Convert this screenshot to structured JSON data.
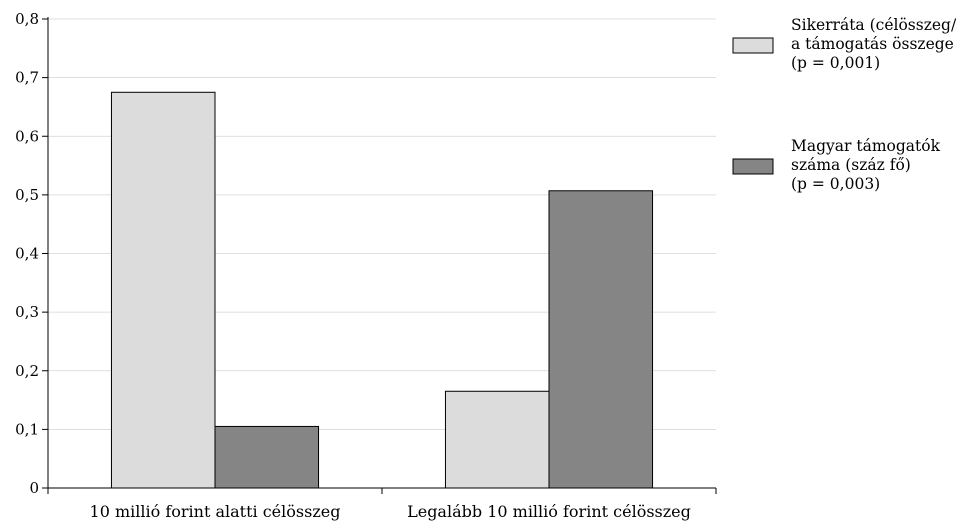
{
  "chart_data": {
    "type": "bar",
    "categories": [
      "10 millió forint alatti célösszeg",
      "Legalább 10 millió forint célösszeg"
    ],
    "series": [
      {
        "name": "Sikerráta (célösszeg/ a támogatás összege) (p = 0,001)",
        "legend_lines": [
          "Sikerráta (célösszeg/",
          "a támogatás összege",
          "(p = 0,001)"
        ],
        "color": "#dcdcdc",
        "values": [
          0.675,
          0.165
        ]
      },
      {
        "name": "Magyar támogatók száma (száz fő) (p = 0,003)",
        "legend_lines": [
          "Magyar támogatók",
          "száma (száz fő)",
          "(p = 0,003)"
        ],
        "color": "#858585",
        "values": [
          0.105,
          0.507
        ]
      }
    ],
    "y_ticks": [
      "0",
      "0,1",
      "0,2",
      "0,3",
      "0,4",
      "0,5",
      "0,6",
      "0,7",
      "0,8"
    ],
    "ylim": [
      0,
      0.8
    ],
    "grid": true,
    "legend_position": "right",
    "title": "",
    "xlabel": "",
    "ylabel": ""
  }
}
